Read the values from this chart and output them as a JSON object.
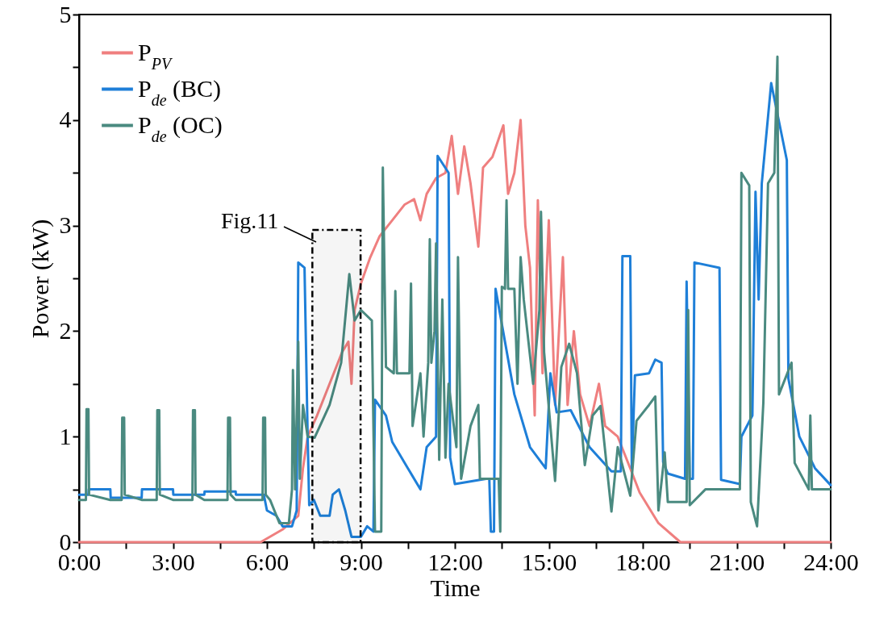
{
  "chart_data": {
    "type": "line",
    "xlabel": "Time",
    "ylabel": "Power (kW)",
    "xlim": [
      0,
      24
    ],
    "ylim": [
      0,
      5
    ],
    "xticks": [
      {
        "value": 0,
        "label": "0:00"
      },
      {
        "value": 1.5,
        "label": null
      },
      {
        "value": 3,
        "label": "3:00"
      },
      {
        "value": 4.5,
        "label": null
      },
      {
        "value": 6,
        "label": "6:00"
      },
      {
        "value": 7.5,
        "label": null
      },
      {
        "value": 9,
        "label": "9:00"
      },
      {
        "value": 10.5,
        "label": null
      },
      {
        "value": 12,
        "label": "12:00"
      },
      {
        "value": 13.5,
        "label": null
      },
      {
        "value": 15,
        "label": "15:00"
      },
      {
        "value": 16.5,
        "label": null
      },
      {
        "value": 18,
        "label": "18:00"
      },
      {
        "value": 19.5,
        "label": null
      },
      {
        "value": 21,
        "label": "21:00"
      },
      {
        "value": 22.5,
        "label": null
      },
      {
        "value": 24,
        "label": "24:00"
      }
    ],
    "yticks": [
      0,
      {
        "value": 0.5,
        "label": null
      },
      1,
      {
        "value": 1.5,
        "label": null
      },
      2,
      {
        "value": 2.5,
        "label": null
      },
      3,
      {
        "value": 3.5,
        "label": null
      },
      4,
      {
        "value": 4.5,
        "label": null
      },
      5
    ],
    "grid": false,
    "legend": "top left",
    "line_style": "solid",
    "series": [
      {
        "name": "P$_{PV}$",
        "color": "#ef7f7f",
        "x": [
          0,
          5.8,
          6.5,
          7.0,
          7.15,
          7.3,
          7.6,
          8.0,
          8.4,
          8.6,
          8.7,
          8.8,
          9.0,
          9.3,
          9.6,
          10.0,
          10.4,
          10.7,
          10.9,
          11.1,
          11.4,
          11.7,
          11.9,
          12.1,
          12.3,
          12.5,
          12.75,
          12.9,
          13.2,
          13.55,
          13.7,
          13.9,
          14.1,
          14.25,
          14.4,
          14.55,
          14.65,
          14.8,
          15.0,
          15.2,
          15.45,
          15.6,
          15.8,
          16.0,
          16.3,
          16.6,
          16.8,
          17.2,
          17.6,
          17.9,
          18.5,
          19.2,
          24
        ],
        "values": [
          0,
          0,
          0.12,
          0.25,
          0.7,
          1.0,
          1.2,
          1.5,
          1.8,
          1.9,
          1.5,
          2.2,
          2.45,
          2.7,
          2.9,
          3.05,
          3.2,
          3.25,
          3.05,
          3.3,
          3.45,
          3.5,
          3.85,
          3.3,
          3.75,
          3.4,
          2.8,
          3.55,
          3.65,
          3.95,
          3.3,
          3.5,
          4.0,
          3.0,
          2.6,
          1.2,
          3.24,
          1.6,
          3.05,
          1.3,
          2.7,
          1.3,
          2.0,
          1.4,
          1.1,
          1.5,
          1.1,
          1.0,
          0.7,
          0.47,
          0.18,
          0,
          0
        ]
      },
      {
        "name": "P$_{de}$ (BC)",
        "color": "#1e7fd8",
        "x": [
          0,
          0.3,
          0.31,
          1,
          1.01,
          2,
          2.01,
          3,
          3.01,
          4,
          4.01,
          5,
          5.01,
          5.9,
          6.0,
          6.3,
          6.5,
          6.8,
          6.95,
          7.0,
          7.2,
          7.3,
          7.35,
          7.5,
          7.7,
          8.0,
          8.1,
          8.3,
          8.5,
          8.7,
          9.0,
          9.2,
          9.4,
          9.45,
          9.8,
          10.0,
          10.5,
          10.9,
          11.1,
          11.4,
          11.45,
          11.8,
          11.85,
          12.0,
          13.0,
          13.1,
          13.15,
          13.25,
          13.3,
          13.9,
          14.4,
          14.9,
          15.05,
          15.25,
          15.7,
          16.3,
          17.0,
          17.3,
          17.35,
          17.6,
          17.65,
          17.75,
          18.2,
          18.4,
          18.6,
          18.65,
          18.8,
          19.35,
          19.4,
          19.5,
          19.6,
          19.65,
          20.45,
          20.5,
          21.1,
          21.15,
          21.5,
          21.6,
          21.7,
          21.8,
          22.1,
          22.6,
          22.65,
          23.0,
          23.5,
          24
        ],
        "values": [
          0.45,
          0.45,
          0.5,
          0.5,
          0.42,
          0.42,
          0.5,
          0.5,
          0.45,
          0.45,
          0.48,
          0.48,
          0.45,
          0.45,
          0.3,
          0.25,
          0.15,
          0.15,
          0.3,
          2.65,
          2.6,
          1.0,
          0.35,
          0.4,
          0.25,
          0.25,
          0.45,
          0.5,
          0.3,
          0.05,
          0.05,
          0.15,
          0.1,
          1.35,
          1.2,
          0.95,
          0.7,
          0.5,
          0.9,
          1.0,
          3.66,
          3.5,
          0.8,
          0.55,
          0.6,
          0.6,
          0.1,
          0.1,
          2.4,
          1.4,
          0.9,
          0.7,
          1.6,
          1.23,
          1.25,
          0.9,
          0.67,
          0.67,
          2.71,
          2.71,
          0.7,
          1.58,
          1.6,
          1.73,
          1.7,
          0.76,
          0.65,
          0.6,
          2.47,
          0.6,
          0.6,
          2.65,
          2.6,
          0.59,
          0.55,
          1.0,
          1.2,
          3.32,
          2.3,
          3.4,
          4.35,
          3.62,
          1.55,
          1.0,
          0.7,
          0.54
        ]
      },
      {
        "name": "P$_{de}$ (OC)",
        "color": "#4a8a80",
        "x": [
          0,
          0.22,
          0.24,
          0.3,
          0.32,
          1.0,
          1.36,
          1.38,
          1.44,
          1.46,
          2.0,
          2.48,
          2.5,
          2.56,
          2.58,
          3.0,
          3.62,
          3.64,
          3.7,
          3.72,
          4.0,
          4.74,
          4.76,
          4.82,
          4.84,
          5.0,
          5.86,
          5.88,
          5.94,
          5.96,
          6.1,
          6.4,
          6.7,
          6.8,
          6.83,
          6.9,
          7.0,
          7.05,
          7.15,
          7.3,
          7.52,
          8.0,
          8.37,
          8.63,
          8.8,
          9.0,
          9.35,
          9.45,
          9.65,
          9.7,
          9.8,
          10.05,
          10.1,
          10.15,
          10.55,
          10.6,
          10.65,
          10.9,
          11.0,
          11.15,
          11.2,
          11.25,
          11.35,
          11.4,
          11.5,
          11.6,
          11.7,
          11.8,
          12.05,
          12.1,
          12.2,
          12.5,
          12.75,
          12.8,
          13.4,
          13.45,
          13.5,
          13.6,
          13.65,
          13.7,
          13.9,
          14.0,
          14.1,
          14.2,
          14.5,
          14.7,
          14.75,
          14.85,
          15.2,
          15.4,
          15.65,
          15.9,
          16.15,
          16.4,
          16.65,
          17.0,
          17.2,
          17.6,
          17.8,
          18.2,
          18.4,
          18.5,
          18.7,
          18.8,
          19.4,
          19.45,
          19.5,
          20.0,
          21.1,
          21.15,
          21.4,
          21.45,
          21.65,
          21.85,
          22.0,
          22.2,
          22.3,
          22.35,
          22.75,
          22.85,
          23.3,
          23.35,
          23.4,
          24
        ],
        "values": [
          0.4,
          0.4,
          1.26,
          1.26,
          0.45,
          0.4,
          0.4,
          1.18,
          1.18,
          0.45,
          0.4,
          0.4,
          1.25,
          1.25,
          0.45,
          0.4,
          0.4,
          1.25,
          1.25,
          0.45,
          0.4,
          0.4,
          1.18,
          1.18,
          0.45,
          0.4,
          0.4,
          1.18,
          1.18,
          0.45,
          0.4,
          0.18,
          0.18,
          0.5,
          1.63,
          0.5,
          1.9,
          0.6,
          1.3,
          1.0,
          0.99,
          1.3,
          1.7,
          2.54,
          2.1,
          2.2,
          2.1,
          0.1,
          0.1,
          3.55,
          1.66,
          1.6,
          2.38,
          1.6,
          1.6,
          2.45,
          1.1,
          1.6,
          1.0,
          1.7,
          2.87,
          1.7,
          2.0,
          2.83,
          0.78,
          2.3,
          0.8,
          1.5,
          0.9,
          2.7,
          0.6,
          1.1,
          1.3,
          0.6,
          0.6,
          0.1,
          2.42,
          2.4,
          3.24,
          2.4,
          2.4,
          1.5,
          2.7,
          2.3,
          1.5,
          2.2,
          3.13,
          1.8,
          0.58,
          1.66,
          1.88,
          1.6,
          0.73,
          1.2,
          1.29,
          0.29,
          0.9,
          0.44,
          1.15,
          1.3,
          1.38,
          0.3,
          0.85,
          0.38,
          0.38,
          2.2,
          0.35,
          0.5,
          0.5,
          3.5,
          3.38,
          0.38,
          0.15,
          1.32,
          3.4,
          3.5,
          4.6,
          1.4,
          1.7,
          0.75,
          0.5,
          1.2,
          0.5,
          0.5
        ]
      }
    ],
    "bands": [
      {
        "axis": "x",
        "from": 7.45,
        "to": 8.99,
        "label": "Fig.11",
        "color": "#000000"
      }
    ]
  }
}
